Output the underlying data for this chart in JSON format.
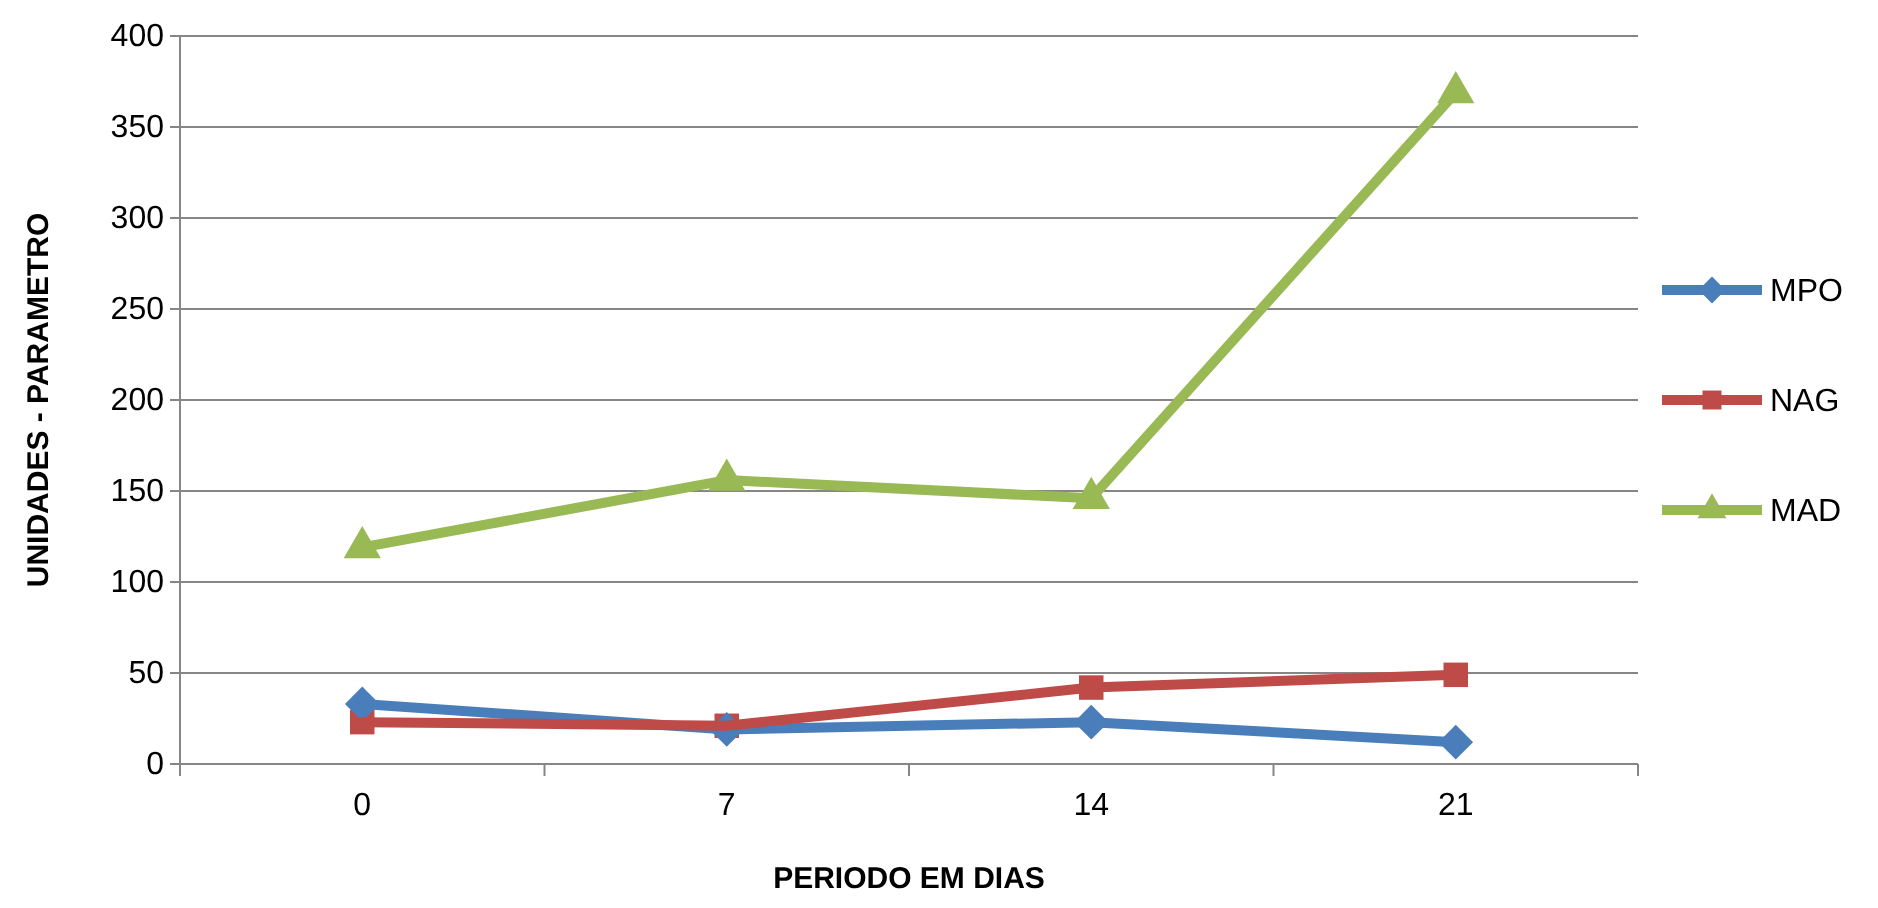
{
  "chart_data": {
    "type": "line",
    "xlabel": "PERIODO EM DIAS",
    "ylabel": "UNIDADES  - PARAMETRO",
    "categories": [
      "0",
      "7",
      "14",
      "21"
    ],
    "series": [
      {
        "name": "MPO",
        "color": "#4a7ebb",
        "marker": "diamond",
        "values": [
          33,
          19,
          23,
          12
        ]
      },
      {
        "name": "NAG",
        "color": "#be4b48",
        "marker": "square",
        "values": [
          23,
          21,
          42,
          49
        ]
      },
      {
        "name": "MAD",
        "color": "#98b954",
        "marker": "triangle",
        "values": [
          119,
          156,
          146,
          369
        ]
      }
    ],
    "ylim": [
      0,
      400
    ],
    "yticks": [
      0,
      50,
      100,
      150,
      200,
      250,
      300,
      350,
      400
    ],
    "grid": "y",
    "legend": "right"
  }
}
